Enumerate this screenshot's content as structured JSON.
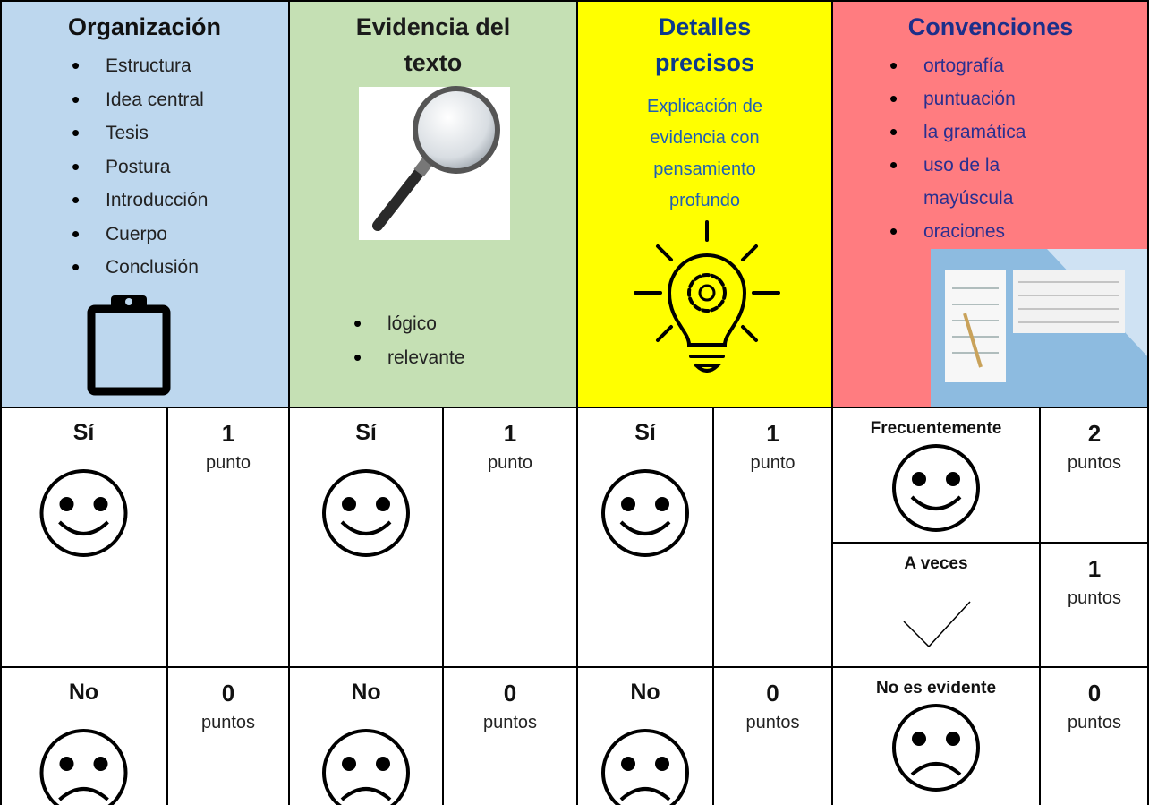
{
  "header": [
    {
      "title": "Organización",
      "items": [
        "Estructura",
        "Idea central",
        "Tesis",
        "Postura",
        "Introducción",
        "Cuerpo",
        "Conclusión"
      ]
    },
    {
      "title": "Evidencia del texto",
      "items": [
        "lógico",
        "relevante"
      ]
    },
    {
      "title": "Detalles precisos",
      "description": "Explicación de evidencia con pensamiento profundo"
    },
    {
      "title": "Convenciones",
      "items": [
        "ortografía",
        "puntuación",
        "la gramática",
        "uso de la mayúscula",
        "oraciones"
      ]
    }
  ],
  "scores": [
    [
      {
        "label": "Sí",
        "points": 1,
        "unit": "punto"
      },
      {
        "label": "No",
        "points": 0,
        "unit": "puntos"
      }
    ],
    [
      {
        "label": "Sí",
        "points": 1,
        "unit": "punto"
      },
      {
        "label": "No",
        "points": 0,
        "unit": "puntos"
      }
    ],
    [
      {
        "label": "Sí",
        "points": 1,
        "unit": "punto"
      },
      {
        "label": "No",
        "points": 0,
        "unit": "puntos"
      }
    ],
    [
      {
        "label": "Frecuentemente",
        "points": 2,
        "unit": "puntos"
      },
      {
        "label": "A veces",
        "points": 1,
        "unit": "puntos"
      },
      {
        "label": "No es evidente",
        "points": 0,
        "unit": "puntos"
      }
    ]
  ]
}
